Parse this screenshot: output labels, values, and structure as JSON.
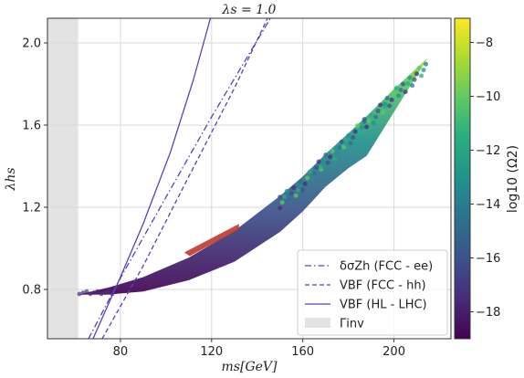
{
  "chart_data": {
    "type": "scatter",
    "title": "λs = 1.0",
    "xlabel": "ms[GeV]",
    "ylabel": "λhs",
    "xlim": [
      48,
      225
    ],
    "ylim": [
      0.56,
      2.12
    ],
    "xticks": [
      80,
      120,
      160,
      200
    ],
    "xtick_labels": [
      "80",
      "120",
      "160",
      "200"
    ],
    "yticks": [
      0.8,
      1.2,
      1.6,
      2.0
    ],
    "ytick_labels": [
      "0.8",
      "1.2",
      "1.6",
      "2.0"
    ],
    "grid": true,
    "colorbar": {
      "label": "log10 (Ω2)",
      "range": [
        -19,
        -7.1
      ],
      "ticks": [
        -8,
        -10,
        -12,
        -14,
        -16,
        -18
      ],
      "tick_labels": [
        "−8",
        "−10",
        "−12",
        "−14",
        "−16",
        "−18"
      ],
      "colormap": "viridis"
    },
    "excluded_region": {
      "name": "Γinv",
      "x_range": [
        48,
        61.5
      ],
      "color": "#e3e3e3"
    },
    "series": [
      {
        "name": "δσZh (FCC - ee)",
        "style": "dashdot",
        "color": "#5a3fbd",
        "x": [
          66,
          80,
          100,
          120,
          145.8
        ],
        "y": [
          0.56,
          0.855,
          1.25,
          1.64,
          2.12
        ]
      },
      {
        "name": "VBF (FCC - hh)",
        "style": "dashed",
        "color": "#5a3fbd",
        "x": [
          72,
          90,
          110,
          130,
          144.5
        ],
        "y": [
          0.56,
          0.915,
          1.35,
          1.78,
          2.12
        ]
      },
      {
        "name": "VBF (HL - LHC)",
        "style": "solid",
        "color": "#5a3fbd",
        "x": [
          68,
          80,
          90,
          102,
          112,
          119.5
        ],
        "y": [
          0.56,
          0.86,
          1.12,
          1.47,
          1.82,
          2.12
        ]
      }
    ],
    "scatter_band": {
      "upper": {
        "x": [
          61.5,
          75,
          90,
          110,
          130,
          150,
          160,
          170,
          180,
          190,
          200,
          215
        ],
        "y": [
          0.775,
          0.81,
          0.86,
          0.955,
          1.085,
          1.255,
          1.35,
          1.46,
          1.56,
          1.665,
          1.775,
          1.93
        ]
      },
      "lower": {
        "x": [
          61.5,
          75,
          90,
          110,
          130,
          150,
          160,
          170,
          180,
          188
        ],
        "y": [
          0.775,
          0.775,
          0.79,
          0.845,
          0.935,
          1.08,
          1.18,
          1.3,
          1.39,
          1.45
        ]
      },
      "high_density_region": {
        "x": [
          108,
          132
        ],
        "y": [
          0.98,
          1.11
        ],
        "color": "#c0392b"
      }
    },
    "legend": {
      "position": "lower-right"
    }
  }
}
